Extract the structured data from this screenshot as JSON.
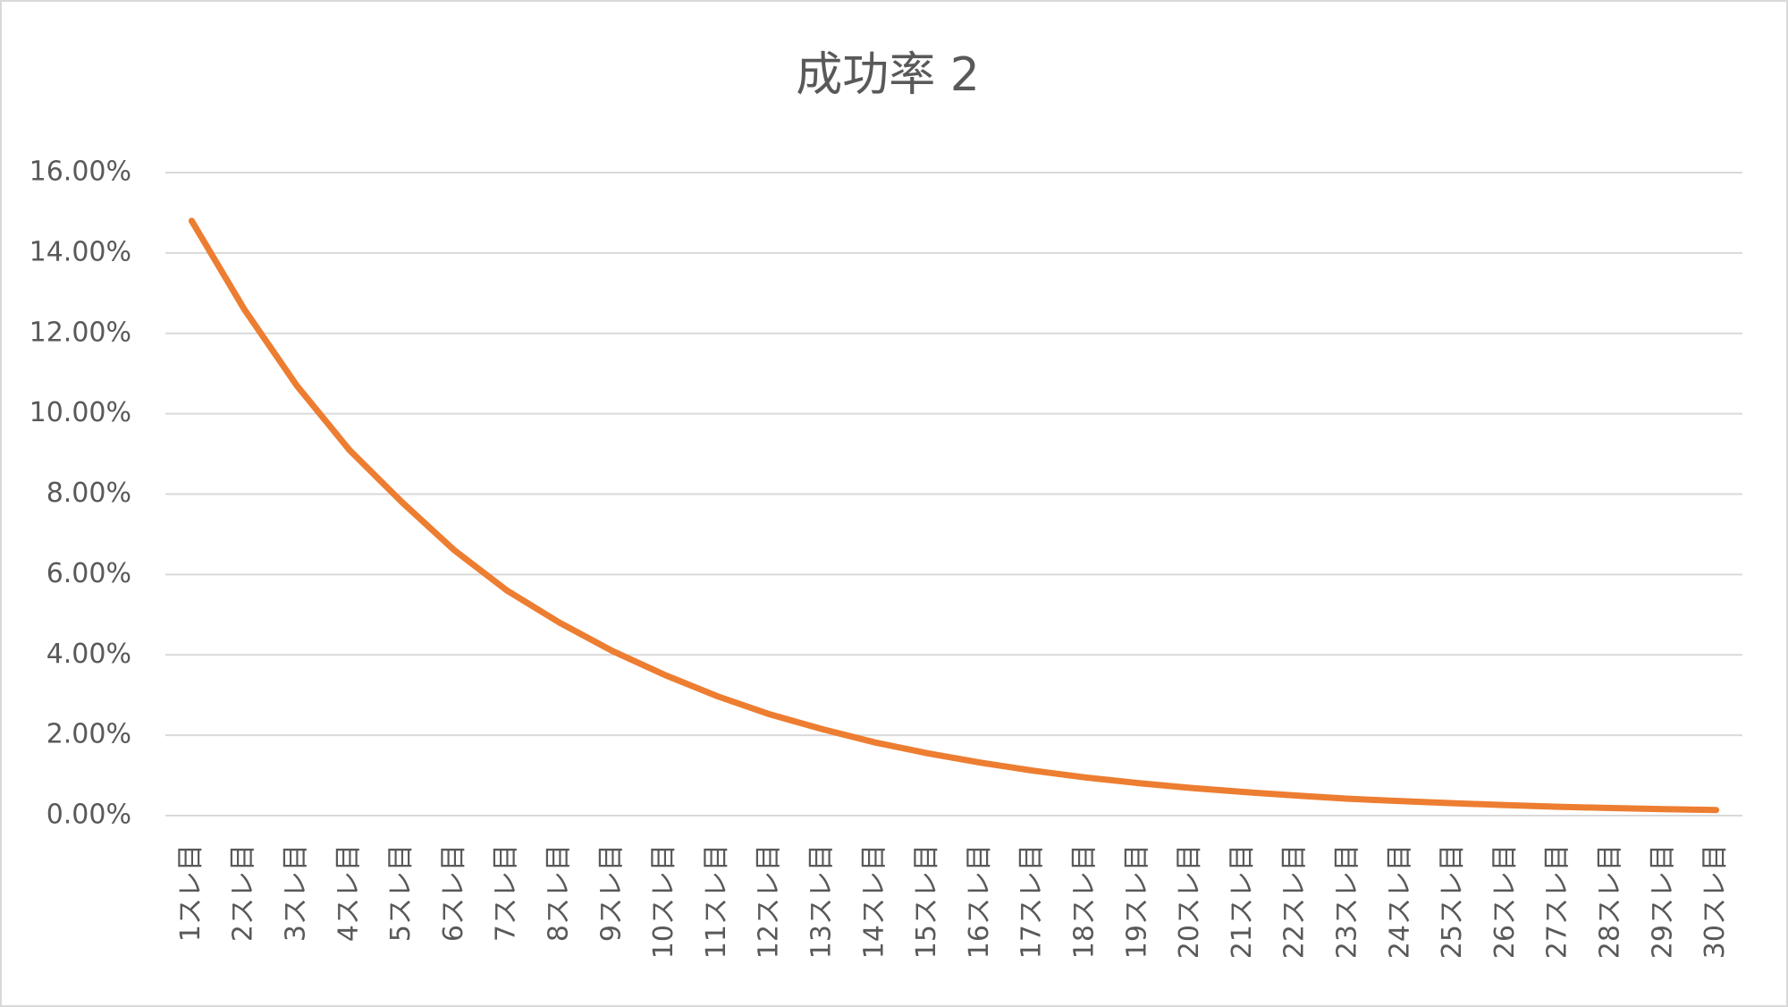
{
  "chart_data": {
    "type": "line",
    "title": "成功率 2",
    "categories": [
      "1スレ目",
      "2スレ目",
      "3スレ目",
      "4スレ目",
      "5スレ目",
      "6スレ目",
      "7スレ目",
      "8スレ目",
      "9スレ目",
      "10スレ目",
      "11スレ目",
      "12スレ目",
      "13スレ目",
      "14スレ目",
      "15スレ目",
      "16スレ目",
      "17スレ目",
      "18スレ目",
      "19スレ目",
      "20スレ目",
      "21スレ目",
      "22スレ目",
      "23スレ目",
      "24スレ目",
      "25スレ目",
      "26スレ目",
      "27スレ目",
      "28スレ目",
      "29スレ目",
      "30スレ目"
    ],
    "values": [
      14.8,
      12.6,
      10.7,
      9.1,
      7.8,
      6.6,
      5.6,
      4.8,
      4.1,
      3.5,
      2.97,
      2.52,
      2.15,
      1.82,
      1.55,
      1.32,
      1.12,
      0.95,
      0.81,
      0.69,
      0.59,
      0.5,
      0.42,
      0.36,
      0.31,
      0.26,
      0.22,
      0.19,
      0.16,
      0.14
    ],
    "color": "#ed7d31",
    "ylim": [
      0,
      16
    ],
    "yticks": [
      {
        "value": 0,
        "label": "0.00%"
      },
      {
        "value": 2,
        "label": "2.00%"
      },
      {
        "value": 4,
        "label": "4.00%"
      },
      {
        "value": 6,
        "label": "6.00%"
      },
      {
        "value": 8,
        "label": "8.00%"
      },
      {
        "value": 10,
        "label": "10.00%"
      },
      {
        "value": 12,
        "label": "12.00%"
      },
      {
        "value": 14,
        "label": "14.00%"
      },
      {
        "value": 16,
        "label": "16.00%"
      }
    ],
    "grid": true
  }
}
